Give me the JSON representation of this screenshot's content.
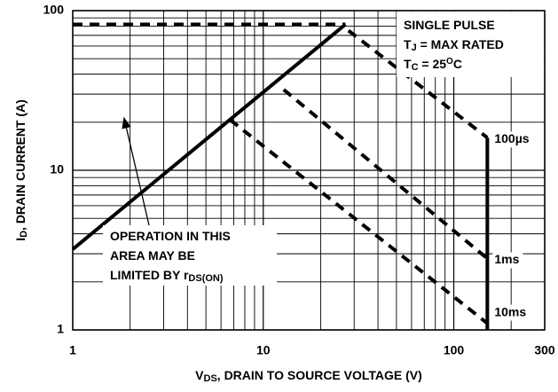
{
  "chart_data": {
    "type": "line",
    "log_x": true,
    "log_y": true,
    "grid": true,
    "color": "#000000",
    "xlim": [
      1,
      300
    ],
    "ylim": [
      1,
      100
    ],
    "xticks": [
      1,
      10,
      100,
      300
    ],
    "yticks": [
      1,
      10,
      100
    ],
    "x_minor_grid": [
      2,
      3,
      4,
      5,
      6,
      7,
      8,
      9,
      20,
      30,
      40,
      50,
      60,
      70,
      80,
      90,
      200
    ],
    "y_minor_grid": [
      2,
      3,
      4,
      5,
      6,
      7,
      8,
      9,
      20,
      30,
      40,
      50,
      60,
      70,
      80,
      90
    ],
    "xlabel": [
      {
        "t": "V"
      },
      {
        "t": "DS",
        "sub": true
      },
      {
        "t": ", DRAIN TO SOURCE VOLTAGE (V)"
      }
    ],
    "ylabel": [
      {
        "t": "I"
      },
      {
        "t": "D",
        "sub": true
      },
      {
        "t": ", DRAIN CURRENT (A)"
      }
    ],
    "conditions": [
      [
        {
          "t": "SINGLE PULSE"
        }
      ],
      [
        {
          "t": "T"
        },
        {
          "t": "J",
          "sub": true
        },
        {
          "t": " = MAX RATED"
        }
      ],
      [
        {
          "t": "T"
        },
        {
          "t": "C",
          "sub": true
        },
        {
          "t": " = 25"
        },
        {
          "t": "O",
          "sup": true
        },
        {
          "t": "C"
        }
      ]
    ],
    "note": [
      [
        {
          "t": "OPERATION IN THIS"
        }
      ],
      [
        {
          "t": "AREA MAY BE"
        }
      ],
      [
        {
          "t": "LIMITED BY r"
        },
        {
          "t": "DS(ON)",
          "sub": true
        }
      ]
    ],
    "series": [
      {
        "style": "solid",
        "color": "#000000",
        "x": [
          1,
          27
        ],
        "values": [
          3.2,
          82
        ]
      },
      {
        "style": "dashed",
        "color": "#000000",
        "x": [
          1,
          27
        ],
        "values": [
          82,
          82
        ]
      },
      {
        "name": "100µs",
        "style": "dashed",
        "color": "#000000",
        "x": [
          28,
          150
        ],
        "values": [
          75,
          16
        ]
      },
      {
        "name": "1ms",
        "style": "dashed",
        "color": "#000000",
        "x": [
          12.8,
          150
        ],
        "values": [
          32,
          2.8
        ]
      },
      {
        "name": "10ms",
        "style": "dashed",
        "color": "#000000",
        "x": [
          6.7,
          150
        ],
        "values": [
          20.7,
          1.1
        ]
      },
      {
        "style": "solid",
        "color": "#000000",
        "x": [
          150,
          150
        ],
        "values": [
          16,
          1
        ]
      }
    ]
  }
}
